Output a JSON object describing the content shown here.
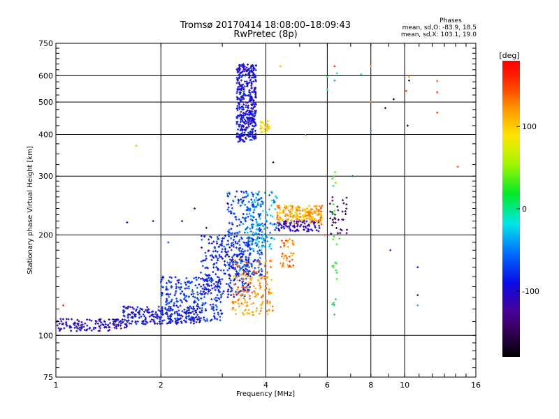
{
  "chart_data": {
    "type": "scatter",
    "title": "Tromsø 20170414 18:08:00–18:09:43",
    "subtitle": "RwPretec (8p)",
    "stats": {
      "heading": "Phases",
      "line_o": "mean, sd,O: -83.9, 18.5",
      "line_x": "mean, sd,X: 103.1, 19.0"
    },
    "xlabel": "Frequency [MHz]",
    "ylabel": "Stationary phase Virtual Height [km]",
    "x_scale": "log",
    "y_scale": "log",
    "xlim": [
      1,
      16
    ],
    "ylim": [
      75,
      750
    ],
    "x_ticks": [
      1,
      2,
      4,
      6,
      8,
      10,
      16
    ],
    "x_tick_labels": [
      "1",
      "2",
      "4",
      "6",
      "8",
      "10",
      "16"
    ],
    "y_ticks": [
      75,
      100,
      200,
      300,
      400,
      500,
      600,
      750
    ],
    "y_tick_labels": [
      "75",
      "100",
      "200",
      "300",
      "400",
      "500",
      "600",
      "750"
    ],
    "grid_x": [
      2,
      4,
      6,
      8,
      10
    ],
    "grid_y": [
      100,
      200,
      300,
      400,
      500,
      600
    ],
    "grid": true,
    "colorbar": {
      "label": "[deg]",
      "range": [
        -180,
        180
      ],
      "ticks": [
        100,
        0,
        -100
      ],
      "tick_labels": [
        "100",
        "0",
        "-100"
      ]
    },
    "clusters": [
      {
        "x_range": [
          1.0,
          1.6
        ],
        "h_range": [
          103,
          112
        ],
        "phase": -105,
        "count": 130
      },
      {
        "x_range": [
          1.55,
          2.6
        ],
        "h_range": [
          108,
          122
        ],
        "phase": -95,
        "count": 220
      },
      {
        "x_range": [
          2.0,
          3.0
        ],
        "h_range": [
          110,
          150
        ],
        "phase": -75,
        "count": 260
      },
      {
        "x_range": [
          2.6,
          3.6
        ],
        "h_range": [
          130,
          200
        ],
        "phase": -85,
        "count": 260
      },
      {
        "x_range": [
          3.1,
          3.9
        ],
        "h_range": [
          150,
          270
        ],
        "phase": -70,
        "count": 260
      },
      {
        "x_range": [
          3.3,
          3.75
        ],
        "h_range": [
          380,
          650
        ],
        "phase": -95,
        "count": 420
      },
      {
        "x_range": [
          3.2,
          4.2
        ],
        "h_range": [
          115,
          170
        ],
        "phase": 125,
        "count": 160
      },
      {
        "x_range": [
          3.5,
          4.3
        ],
        "h_range": [
          180,
          270
        ],
        "phase": -40,
        "count": 130
      },
      {
        "x_range": [
          4.3,
          5.8
        ],
        "h_range": [
          215,
          245
        ],
        "phase": 115,
        "count": 210
      },
      {
        "x_range": [
          4.2,
          5.7
        ],
        "h_range": [
          205,
          220
        ],
        "phase": -110,
        "count": 80
      },
      {
        "x_range": [
          4.4,
          4.8
        ],
        "h_range": [
          160,
          195
        ],
        "phase": 130,
        "count": 40
      },
      {
        "x_range": [
          3.85,
          4.1
        ],
        "h_range": [
          405,
          440
        ],
        "phase": 100,
        "count": 35
      },
      {
        "x_range": [
          6.1,
          6.9
        ],
        "h_range": [
          200,
          260
        ],
        "phase": -140,
        "count": 35
      },
      {
        "x_range": [
          6.2,
          6.4
        ],
        "h_range": [
          110,
          315
        ],
        "phase": 20,
        "count": 25
      }
    ],
    "isolated_points": [
      {
        "x": 1.05,
        "h": 123,
        "phase": 150
      },
      {
        "x": 1.7,
        "h": 370,
        "phase": 50
      },
      {
        "x": 1.6,
        "h": 218,
        "phase": -90
      },
      {
        "x": 1.9,
        "h": 220,
        "phase": -110
      },
      {
        "x": 2.3,
        "h": 220,
        "phase": -90
      },
      {
        "x": 2.5,
        "h": 240,
        "phase": -120
      },
      {
        "x": 2.7,
        "h": 210,
        "phase": -100
      },
      {
        "x": 2.1,
        "h": 190,
        "phase": -70
      },
      {
        "x": 2.7,
        "h": 170,
        "phase": -100
      },
      {
        "x": 3.3,
        "h": 270,
        "phase": -80
      },
      {
        "x": 4.4,
        "h": 640,
        "phase": 110
      },
      {
        "x": 4.2,
        "h": 330,
        "phase": -160
      },
      {
        "x": 5.2,
        "h": 398,
        "phase": 110
      },
      {
        "x": 6.0,
        "h": 545,
        "phase": -20
      },
      {
        "x": 6.0,
        "h": 595,
        "phase": 10
      },
      {
        "x": 6.3,
        "h": 640,
        "phase": 160
      },
      {
        "x": 6.3,
        "h": 580,
        "phase": -40
      },
      {
        "x": 6.4,
        "h": 610,
        "phase": -10
      },
      {
        "x": 7.1,
        "h": 300,
        "phase": -60
      },
      {
        "x": 6.5,
        "h": 195,
        "phase": 30
      },
      {
        "x": 5.9,
        "h": 200,
        "phase": 140
      },
      {
        "x": 7.5,
        "h": 605,
        "phase": 10
      },
      {
        "x": 8.0,
        "h": 640,
        "phase": 115
      },
      {
        "x": 8.0,
        "h": 500,
        "phase": 140
      },
      {
        "x": 8.0,
        "h": 410,
        "phase": -40
      },
      {
        "x": 8.8,
        "h": 480,
        "phase": -150
      },
      {
        "x": 9.3,
        "h": 510,
        "phase": -160
      },
      {
        "x": 9.1,
        "h": 180,
        "phase": -80
      },
      {
        "x": 10.3,
        "h": 595,
        "phase": 120
      },
      {
        "x": 10.3,
        "h": 580,
        "phase": -110
      },
      {
        "x": 10.1,
        "h": 540,
        "phase": 150
      },
      {
        "x": 10.2,
        "h": 425,
        "phase": -160
      },
      {
        "x": 10.9,
        "h": 160,
        "phase": -90
      },
      {
        "x": 10.9,
        "h": 132,
        "phase": -140
      },
      {
        "x": 10.9,
        "h": 123,
        "phase": -30
      },
      {
        "x": 12.4,
        "h": 578,
        "phase": 140
      },
      {
        "x": 12.4,
        "h": 535,
        "phase": 150
      },
      {
        "x": 12.4,
        "h": 465,
        "phase": 160
      },
      {
        "x": 14.2,
        "h": 320,
        "phase": 150
      }
    ]
  }
}
